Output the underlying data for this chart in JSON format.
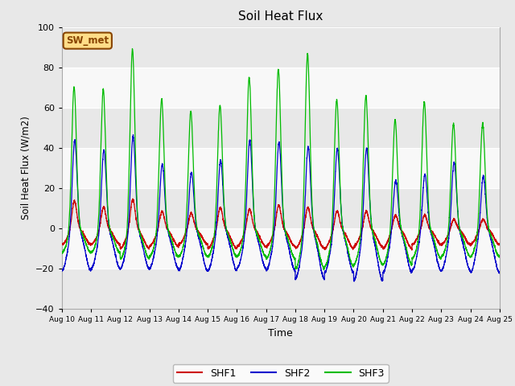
{
  "title": "Soil Heat Flux",
  "xlabel": "Time",
  "ylabel": "Soil Heat Flux (W/m2)",
  "ylim": [
    -40,
    100
  ],
  "xlim": [
    0,
    15
  ],
  "fig_bg": "#e8e8e8",
  "plot_bg": "#ffffff",
  "shf1_color": "#cc0000",
  "shf2_color": "#0000cc",
  "shf3_color": "#00bb00",
  "legend_label1": "SHF1",
  "legend_label2": "SHF2",
  "legend_label3": "SHF3",
  "annotation_text": "SW_met",
  "annotation_bg": "#ffdd88",
  "annotation_border": "#884400",
  "x_tick_labels": [
    "Aug 10",
    "Aug 11",
    "Aug 12",
    "Aug 13",
    "Aug 14",
    "Aug 15",
    "Aug 16",
    "Aug 17",
    "Aug 18",
    "Aug 19",
    "Aug 20",
    "Aug 21",
    "Aug 22",
    "Aug 23",
    "Aug 24",
    "Aug 25"
  ],
  "yticks": [
    -40,
    -20,
    0,
    20,
    40,
    60,
    80,
    100
  ],
  "num_days": 15,
  "points_per_day": 288,
  "shf1_peaks": [
    14,
    11,
    15,
    9,
    8,
    11,
    10,
    12,
    11,
    9,
    9,
    7,
    7,
    5,
    5
  ],
  "shf1_troughs": [
    -8,
    -8,
    -10,
    -9,
    -8,
    -10,
    -9,
    -9,
    -10,
    -10,
    -9,
    -10,
    -8,
    -8,
    -8
  ],
  "shf2_peaks": [
    45,
    40,
    47,
    33,
    29,
    35,
    45,
    44,
    42,
    41,
    41,
    25,
    28,
    34,
    27
  ],
  "shf2_troughs": [
    -21,
    -20,
    -20,
    -20,
    -21,
    -21,
    -20,
    -21,
    -25,
    -22,
    -26,
    -22,
    -21,
    -21,
    -22
  ],
  "shf3_peaks": [
    71,
    70,
    90,
    65,
    59,
    62,
    76,
    80,
    88,
    65,
    67,
    55,
    64,
    53,
    53
  ],
  "shf3_troughs": [
    -12,
    -12,
    -15,
    -14,
    -14,
    -14,
    -14,
    -15,
    -20,
    -19,
    -18,
    -18,
    -15,
    -14,
    -14
  ],
  "band_colors": [
    "#e8e8e8",
    "#f8f8f8"
  ]
}
